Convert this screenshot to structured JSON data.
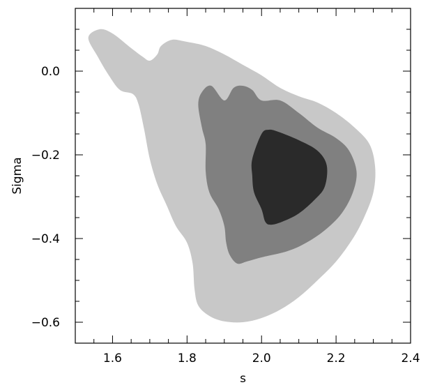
{
  "chart_data": {
    "type": "contour",
    "xlabel": "s",
    "ylabel": "Sigma",
    "xlim": [
      1.5,
      2.4
    ],
    "ylim": [
      -0.65,
      0.15
    ],
    "x_ticks": [
      {
        "value": 1.6,
        "label": "1.6"
      },
      {
        "value": 1.8,
        "label": "1.8"
      },
      {
        "value": 2.0,
        "label": "2.0"
      },
      {
        "value": 2.2,
        "label": "2.2"
      },
      {
        "value": 2.4,
        "label": "2.4"
      }
    ],
    "x_minor_step": 0.05,
    "y_ticks": [
      {
        "value": 0.0,
        "label": "0.0"
      },
      {
        "value": -0.2,
        "label": "−0.2"
      },
      {
        "value": -0.4,
        "label": "−0.4"
      },
      {
        "value": -0.6,
        "label": "−0.6"
      }
    ],
    "y_minor_step": 0.05,
    "grid": false,
    "levels": [
      {
        "level": "outer",
        "color": "#c8c8c8",
        "points": [
          [
            1.535,
            0.08
          ],
          [
            1.565,
            0.1
          ],
          [
            1.6,
            0.09
          ],
          [
            1.65,
            0.055
          ],
          [
            1.68,
            0.035
          ],
          [
            1.7,
            0.025
          ],
          [
            1.72,
            0.04
          ],
          [
            1.73,
            0.06
          ],
          [
            1.76,
            0.075
          ],
          [
            1.8,
            0.07
          ],
          [
            1.85,
            0.06
          ],
          [
            1.9,
            0.04
          ],
          [
            1.95,
            0.015
          ],
          [
            2.0,
            -0.01
          ],
          [
            2.05,
            -0.04
          ],
          [
            2.1,
            -0.06
          ],
          [
            2.15,
            -0.075
          ],
          [
            2.2,
            -0.1
          ],
          [
            2.25,
            -0.135
          ],
          [
            2.29,
            -0.175
          ],
          [
            2.305,
            -0.23
          ],
          [
            2.3,
            -0.29
          ],
          [
            2.275,
            -0.35
          ],
          [
            2.245,
            -0.4
          ],
          [
            2.2,
            -0.455
          ],
          [
            2.15,
            -0.5
          ],
          [
            2.1,
            -0.54
          ],
          [
            2.05,
            -0.57
          ],
          [
            2.0,
            -0.59
          ],
          [
            1.95,
            -0.6
          ],
          [
            1.9,
            -0.598
          ],
          [
            1.86,
            -0.585
          ],
          [
            1.83,
            -0.56
          ],
          [
            1.82,
            -0.52
          ],
          [
            1.815,
            -0.46
          ],
          [
            1.8,
            -0.41
          ],
          [
            1.77,
            -0.37
          ],
          [
            1.745,
            -0.32
          ],
          [
            1.72,
            -0.27
          ],
          [
            1.7,
            -0.21
          ],
          [
            1.685,
            -0.14
          ],
          [
            1.67,
            -0.08
          ],
          [
            1.655,
            -0.055
          ],
          [
            1.62,
            -0.045
          ],
          [
            1.59,
            -0.01
          ],
          [
            1.56,
            0.035
          ]
        ]
      },
      {
        "level": "middle",
        "color": "#808080",
        "points": [
          [
            1.84,
            -0.05
          ],
          [
            1.865,
            -0.035
          ],
          [
            1.9,
            -0.07
          ],
          [
            1.925,
            -0.04
          ],
          [
            1.95,
            -0.035
          ],
          [
            1.975,
            -0.045
          ],
          [
            2.0,
            -0.07
          ],
          [
            2.05,
            -0.07
          ],
          [
            2.1,
            -0.1
          ],
          [
            2.15,
            -0.135
          ],
          [
            2.2,
            -0.16
          ],
          [
            2.235,
            -0.19
          ],
          [
            2.255,
            -0.24
          ],
          [
            2.245,
            -0.29
          ],
          [
            2.215,
            -0.34
          ],
          [
            2.17,
            -0.38
          ],
          [
            2.12,
            -0.41
          ],
          [
            2.07,
            -0.43
          ],
          [
            2.0,
            -0.445
          ],
          [
            1.96,
            -0.455
          ],
          [
            1.935,
            -0.46
          ],
          [
            1.915,
            -0.44
          ],
          [
            1.905,
            -0.41
          ],
          [
            1.9,
            -0.37
          ],
          [
            1.885,
            -0.33
          ],
          [
            1.86,
            -0.29
          ],
          [
            1.85,
            -0.24
          ],
          [
            1.85,
            -0.175
          ],
          [
            1.84,
            -0.135
          ],
          [
            1.83,
            -0.08
          ]
        ]
      },
      {
        "level": "inner",
        "color": "#2a2a2a",
        "points": [
          [
            2.0,
            -0.15
          ],
          [
            2.02,
            -0.14
          ],
          [
            2.045,
            -0.145
          ],
          [
            2.1,
            -0.165
          ],
          [
            2.15,
            -0.19
          ],
          [
            2.175,
            -0.225
          ],
          [
            2.17,
            -0.275
          ],
          [
            2.145,
            -0.305
          ],
          [
            2.1,
            -0.34
          ],
          [
            2.055,
            -0.36
          ],
          [
            2.025,
            -0.367
          ],
          [
            2.01,
            -0.36
          ],
          [
            2.0,
            -0.33
          ],
          [
            1.98,
            -0.29
          ],
          [
            1.975,
            -0.25
          ],
          [
            1.975,
            -0.21
          ]
        ]
      }
    ]
  }
}
